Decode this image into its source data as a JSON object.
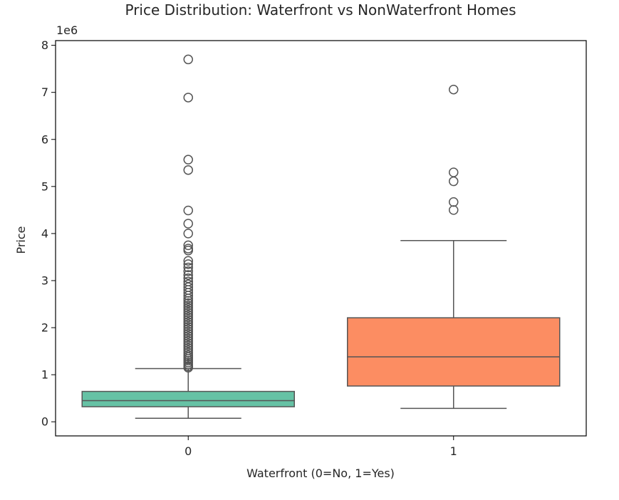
{
  "chart_data": {
    "type": "boxplot",
    "title": "Price Distribution: Waterfront vs NonWaterfront Homes",
    "xlabel": "Waterfront (0=No, 1=Yes)",
    "ylabel": "Price",
    "y_offset_label": "1e6",
    "ylim": [
      -0.3,
      8.1
    ],
    "yticks": [
      0,
      1,
      2,
      3,
      4,
      5,
      6,
      7,
      8
    ],
    "categories": [
      "0",
      "1"
    ],
    "grid": false,
    "boxes": [
      {
        "category": "0",
        "color": "#66c2a5",
        "whisker_low": 0.075,
        "q1": 0.32,
        "median": 0.45,
        "q3": 0.645,
        "whisker_high": 1.13,
        "outliers": [
          7.7,
          6.89,
          5.57,
          5.35,
          4.49,
          4.21,
          4.0,
          3.75,
          3.68,
          3.64,
          3.42,
          3.35,
          3.28,
          3.2,
          3.12,
          3.05,
          2.98,
          2.92,
          2.86,
          2.8,
          2.74,
          2.68,
          2.62,
          2.57,
          2.52,
          2.47,
          2.42,
          2.37,
          2.32,
          2.27,
          2.22,
          2.17,
          2.12,
          2.07,
          2.02,
          1.97,
          1.92,
          1.87,
          1.82,
          1.77,
          1.72,
          1.67,
          1.62,
          1.57,
          1.52,
          1.47,
          1.42,
          1.38,
          1.34,
          1.3,
          1.26,
          1.22,
          1.18,
          1.15
        ]
      },
      {
        "category": "1",
        "color": "#fc8d62",
        "whisker_low": 0.285,
        "q1": 0.76,
        "median": 1.38,
        "q3": 2.21,
        "whisker_high": 3.85,
        "outliers": [
          7.06,
          5.3,
          5.11,
          4.67,
          4.5
        ]
      }
    ]
  }
}
